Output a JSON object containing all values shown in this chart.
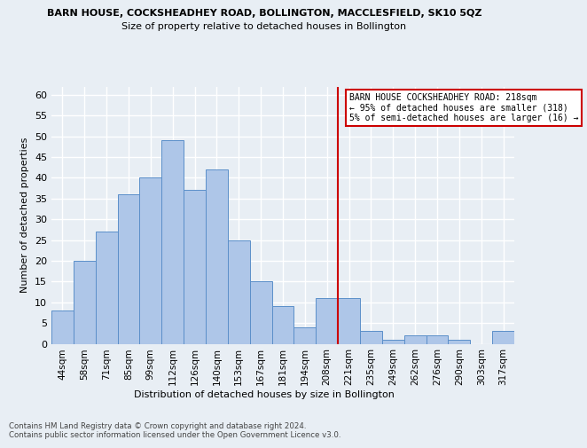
{
  "title": "BARN HOUSE, COCKSHEADHEY ROAD, BOLLINGTON, MACCLESFIELD, SK10 5QZ",
  "subtitle": "Size of property relative to detached houses in Bollington",
  "xlabel": "Distribution of detached houses by size in Bollington",
  "ylabel": "Number of detached properties",
  "categories": [
    "44sqm",
    "58sqm",
    "71sqm",
    "85sqm",
    "99sqm",
    "112sqm",
    "126sqm",
    "140sqm",
    "153sqm",
    "167sqm",
    "181sqm",
    "194sqm",
    "208sqm",
    "221sqm",
    "235sqm",
    "249sqm",
    "262sqm",
    "276sqm",
    "290sqm",
    "303sqm",
    "317sqm"
  ],
  "values": [
    8,
    20,
    27,
    36,
    40,
    49,
    37,
    42,
    25,
    15,
    9,
    4,
    11,
    11,
    3,
    1,
    2,
    2,
    1,
    0,
    3
  ],
  "bar_color": "#aec6e8",
  "bar_edge_color": "#5b8fc9",
  "ylim": [
    0,
    62
  ],
  "yticks": [
    0,
    5,
    10,
    15,
    20,
    25,
    30,
    35,
    40,
    45,
    50,
    55,
    60
  ],
  "vline_color": "#cc0000",
  "annotation_line1": "BARN HOUSE COCKSHEADHEY ROAD: 218sqm",
  "annotation_line2": "← 95% of detached houses are smaller (318)",
  "annotation_line3": "5% of semi-detached houses are larger (16) →",
  "annotation_box_color": "#ffffff",
  "annotation_box_edge": "#cc0000",
  "footer_line1": "Contains HM Land Registry data © Crown copyright and database right 2024.",
  "footer_line2": "Contains public sector information licensed under the Open Government Licence v3.0.",
  "bg_color": "#e8eef4",
  "grid_color": "#ffffff"
}
